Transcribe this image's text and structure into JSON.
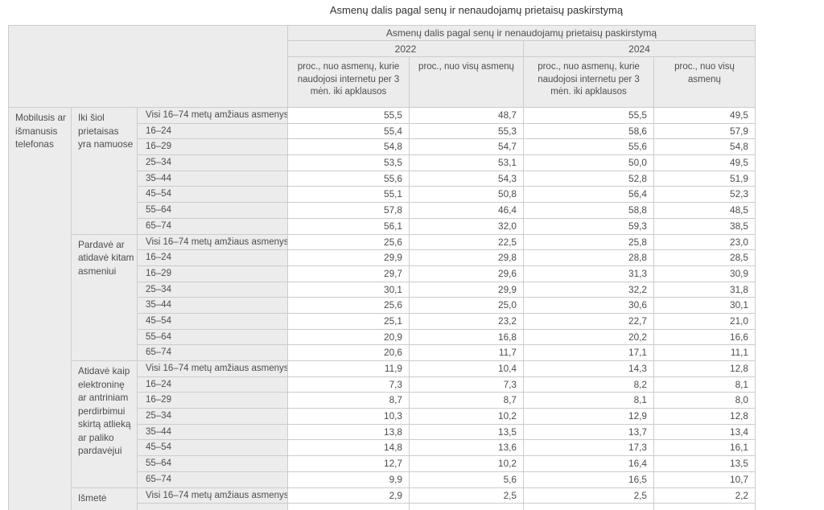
{
  "page_title": "Asmenų dalis pagal senų ir nenaudojamų prietaisų paskirstymą",
  "chart_data": {
    "type": "table",
    "title": "Asmenų dalis pagal senų ir nenaudojamų prietaisų paskirstymą",
    "device_category": "Mobilusis ar išmanusis telefonas",
    "year_headers": [
      "2022",
      "2024"
    ],
    "subcolumn_headers": [
      "proc., nuo asmenų, kurie naudojosi internetu per 3 mėn. iki apklausos",
      "proc., nuo visų asmenų"
    ],
    "columns": [
      "2022 proc., nuo asmenų, kurie naudojosi internetu per 3 mėn. iki apklausos",
      "2022 proc., nuo visų asmenų",
      "2024 proc., nuo asmenų, kurie naudojosi internetu per 3 mėn. iki apklausos",
      "2024 proc., nuo visų asmenų"
    ],
    "groups": [
      {
        "label": "Iki šiol prietaisas yra namuose",
        "rows": [
          {
            "label": "Visi 16–74 metų amžiaus asmenys",
            "values": [
              "55,5",
              "48,7",
              "55,5",
              "49,5"
            ]
          },
          {
            "label": "16–24",
            "values": [
              "55,4",
              "55,3",
              "58,6",
              "57,9"
            ]
          },
          {
            "label": "16–29",
            "values": [
              "54,8",
              "54,7",
              "55,6",
              "54,8"
            ]
          },
          {
            "label": "25–34",
            "values": [
              "53,5",
              "53,1",
              "50,0",
              "49,5"
            ]
          },
          {
            "label": "35–44",
            "values": [
              "55,6",
              "54,3",
              "52,8",
              "51,9"
            ]
          },
          {
            "label": "45–54",
            "values": [
              "55,1",
              "50,8",
              "56,4",
              "52,3"
            ]
          },
          {
            "label": "55–64",
            "values": [
              "57,8",
              "46,4",
              "58,8",
              "48,5"
            ]
          },
          {
            "label": "65–74",
            "values": [
              "56,1",
              "32,0",
              "59,3",
              "38,5"
            ]
          }
        ]
      },
      {
        "label": "Pardavė ar atidavė kitam asmeniui",
        "rows": [
          {
            "label": "Visi 16–74 metų amžiaus asmenys",
            "values": [
              "25,6",
              "22,5",
              "25,8",
              "23,0"
            ]
          },
          {
            "label": "16–24",
            "values": [
              "29,9",
              "29,8",
              "28,8",
              "28,5"
            ]
          },
          {
            "label": "16–29",
            "values": [
              "29,7",
              "29,6",
              "31,3",
              "30,9"
            ]
          },
          {
            "label": "25–34",
            "values": [
              "30,1",
              "29,9",
              "32,2",
              "31,8"
            ]
          },
          {
            "label": "35–44",
            "values": [
              "25,6",
              "25,0",
              "30,6",
              "30,1"
            ]
          },
          {
            "label": "45–54",
            "values": [
              "25,1",
              "23,2",
              "22,7",
              "21,0"
            ]
          },
          {
            "label": "55–64",
            "values": [
              "20,9",
              "16,8",
              "20,2",
              "16,6"
            ]
          },
          {
            "label": "65–74",
            "values": [
              "20,6",
              "11,7",
              "17,1",
              "11,1"
            ]
          }
        ]
      },
      {
        "label": "Atidavė kaip elektroninę ar antriniam perdirbimui skirtą atlieką ar paliko pardavėjui",
        "rows": [
          {
            "label": "Visi 16–74 metų amžiaus asmenys",
            "values": [
              "11,9",
              "10,4",
              "14,3",
              "12,8"
            ]
          },
          {
            "label": "16–24",
            "values": [
              "7,3",
              "7,3",
              "8,2",
              "8,1"
            ]
          },
          {
            "label": "16–29",
            "values": [
              "8,7",
              "8,7",
              "8,1",
              "8,0"
            ]
          },
          {
            "label": "25–34",
            "values": [
              "10,3",
              "10,2",
              "12,9",
              "12,8"
            ]
          },
          {
            "label": "35–44",
            "values": [
              "13,8",
              "13,5",
              "13,7",
              "13,4"
            ]
          },
          {
            "label": "45–54",
            "values": [
              "14,8",
              "13,6",
              "17,3",
              "16,1"
            ]
          },
          {
            "label": "55–64",
            "values": [
              "12,7",
              "10,2",
              "16,4",
              "13,5"
            ]
          },
          {
            "label": "65–74",
            "values": [
              "9,9",
              "5,6",
              "16,5",
              "10,7"
            ]
          }
        ]
      },
      {
        "label": "Išmetė",
        "rows": [
          {
            "label": "Visi 16–74 metų amžiaus asmenys",
            "values": [
              "2,9",
              "2,5",
              "2,5",
              "2,2"
            ]
          }
        ]
      }
    ],
    "partial_row": {
      "label": "",
      "values": [
        "",
        "",
        "",
        ""
      ]
    }
  }
}
